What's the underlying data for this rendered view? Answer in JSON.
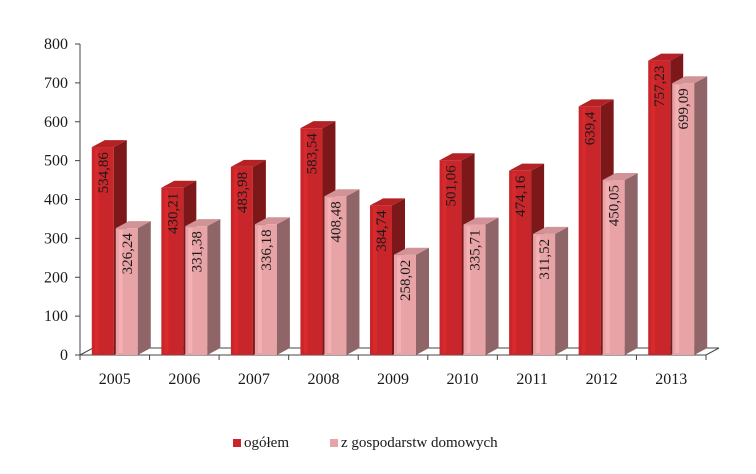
{
  "chart_data": {
    "type": "bar",
    "categories": [
      "2005",
      "2006",
      "2007",
      "2008",
      "2009",
      "2010",
      "2011",
      "2012",
      "2013"
    ],
    "series": [
      {
        "name": "ogółem",
        "values": [
          534.86,
          430.21,
          483.98,
          583.54,
          384.74,
          501.06,
          474.16,
          639.4,
          757.23
        ],
        "labels": [
          "534,86",
          "430,21",
          "483,98",
          "583,54",
          "384,74",
          "501,06",
          "474,16",
          "639,4",
          "757,23"
        ],
        "color": "#c8262a"
      },
      {
        "name": "z gospodarstw domowych",
        "values": [
          326.24,
          331.38,
          336.18,
          408.48,
          258.02,
          335.71,
          311.52,
          450.05,
          699.09
        ],
        "labels": [
          "326,24",
          "331,38",
          "336,18",
          "408,48",
          "258,02",
          "335,71",
          "311,52",
          "450,05",
          "699,09"
        ],
        "color": "#e8a3a6"
      }
    ],
    "yticks": [
      "0",
      "100",
      "200",
      "300",
      "400",
      "500",
      "600",
      "700",
      "800"
    ],
    "ylim": [
      0,
      800
    ],
    "grid": false,
    "legend_position": "bottom",
    "style": "3d-bar"
  }
}
